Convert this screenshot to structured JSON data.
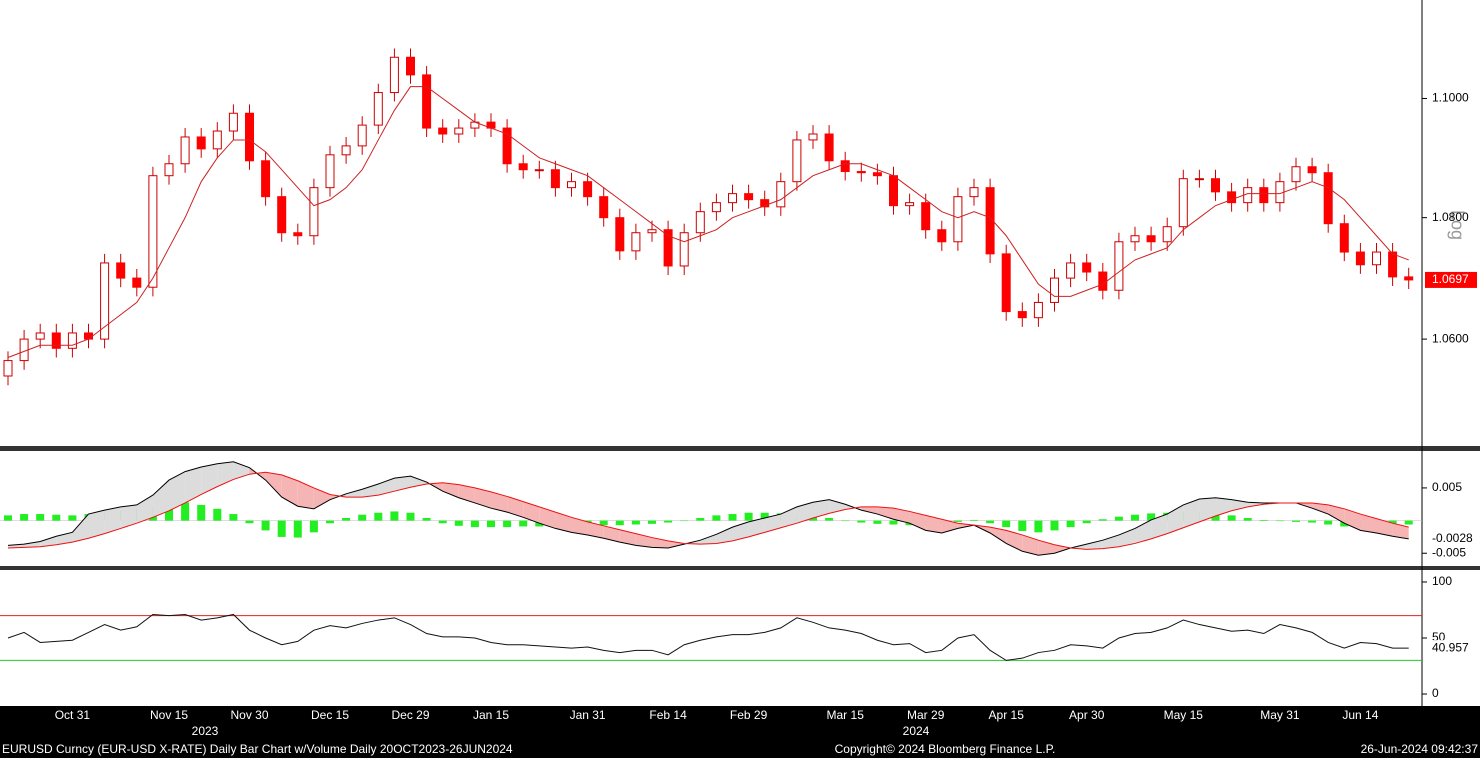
{
  "chart_data": [
    {
      "type": "candlestick",
      "log": true,
      "y_label": "Log",
      "up_color": "#ffffff",
      "down_color": "#ff0000",
      "wick_color": "#cc0000",
      "years": [
        "2023",
        "2024"
      ],
      "categories": [
        null,
        null,
        null,
        null,
        "Oct 31",
        null,
        null,
        null,
        null,
        null,
        "Nov 15",
        null,
        null,
        null,
        null,
        "Nov 30",
        null,
        null,
        null,
        null,
        "Dec 15",
        null,
        null,
        null,
        null,
        "Dec 29",
        null,
        null,
        null,
        null,
        "Jan 15",
        null,
        null,
        null,
        null,
        null,
        "Jan 31",
        null,
        null,
        null,
        null,
        "Feb 14",
        null,
        null,
        null,
        null,
        "Feb 29",
        null,
        null,
        null,
        null,
        null,
        "Mar 15",
        null,
        null,
        null,
        null,
        "Mar 29",
        null,
        null,
        null,
        null,
        "Apr 15",
        null,
        null,
        null,
        null,
        "Apr 30",
        null,
        null,
        null,
        null,
        null,
        "May 15",
        null,
        null,
        null,
        null,
        null,
        "May 31",
        null,
        null,
        null,
        null,
        "Jun 14",
        null,
        null,
        null
      ],
      "open": [
        1.054,
        1.0565,
        1.06,
        1.061,
        1.0585,
        1.061,
        1.06,
        1.0725,
        1.07,
        1.0685,
        1.087,
        1.089,
        1.0935,
        1.0915,
        1.0945,
        1.0975,
        1.0895,
        1.0835,
        1.0775,
        1.077,
        1.085,
        1.0905,
        1.092,
        1.0955,
        1.101,
        1.107,
        1.104,
        1.095,
        1.094,
        1.095,
        1.096,
        1.095,
        1.089,
        1.088,
        1.088,
        1.085,
        1.086,
        1.0835,
        1.08,
        1.0745,
        1.0775,
        1.078,
        1.072,
        1.0775,
        1.081,
        1.0825,
        1.084,
        1.083,
        1.0818,
        1.086,
        1.093,
        1.094,
        1.0895,
        1.0877,
        1.0875,
        1.087,
        1.082,
        1.0825,
        1.078,
        1.076,
        1.0835,
        1.085,
        1.074,
        1.0645,
        1.0635,
        1.066,
        1.07,
        1.0725,
        1.071,
        1.068,
        1.076,
        1.077,
        1.076,
        1.0785,
        1.0865,
        1.0865,
        1.0843,
        1.0825,
        1.085,
        1.0825,
        1.086,
        1.0885,
        1.0875,
        1.079,
        1.0743,
        1.0722,
        1.0743,
        1.0702
      ],
      "high": [
        1.058,
        1.0615,
        1.0625,
        1.0625,
        1.0625,
        1.0625,
        1.074,
        1.074,
        1.0715,
        1.0885,
        1.0905,
        1.095,
        1.095,
        1.096,
        1.099,
        1.099,
        1.091,
        1.085,
        1.079,
        1.0865,
        1.092,
        1.0935,
        1.097,
        1.1025,
        1.1085,
        1.1085,
        1.1055,
        1.0965,
        1.0965,
        1.0975,
        1.0975,
        1.0965,
        1.0905,
        1.0895,
        1.0895,
        1.0875,
        1.0875,
        1.085,
        1.0815,
        1.079,
        1.0795,
        1.0795,
        1.079,
        1.0825,
        1.084,
        1.0855,
        1.0855,
        1.0845,
        1.0875,
        1.0945,
        1.0955,
        1.0955,
        1.091,
        1.0892,
        1.089,
        1.0885,
        1.084,
        1.084,
        1.0795,
        1.085,
        1.0865,
        1.0865,
        1.0755,
        1.066,
        1.0675,
        1.0715,
        1.074,
        1.074,
        1.0725,
        1.0775,
        1.0785,
        1.0785,
        1.08,
        1.088,
        1.088,
        1.088,
        1.0858,
        1.0865,
        1.0865,
        1.0875,
        1.09,
        1.09,
        1.089,
        1.0805,
        1.0758,
        1.0758,
        1.0758,
        1.0717
      ],
      "low": [
        1.0525,
        1.055,
        1.0585,
        1.057,
        1.057,
        1.0585,
        1.0585,
        1.0685,
        1.067,
        1.067,
        1.0855,
        1.0875,
        1.09,
        1.09,
        1.093,
        1.088,
        1.082,
        1.076,
        1.0755,
        1.0755,
        1.0835,
        1.089,
        1.0905,
        1.094,
        1.0995,
        1.1025,
        1.0935,
        1.0925,
        1.0925,
        1.0935,
        1.0935,
        1.0875,
        1.0865,
        1.0865,
        1.0835,
        1.0835,
        1.082,
        1.0785,
        1.073,
        1.073,
        1.076,
        1.0705,
        1.0705,
        1.076,
        1.0795,
        1.081,
        1.0815,
        1.0803,
        1.0803,
        1.0845,
        1.0915,
        1.088,
        1.0862,
        1.086,
        1.0855,
        1.0805,
        1.0805,
        1.0765,
        1.0745,
        1.0745,
        1.082,
        1.0725,
        1.063,
        1.062,
        1.062,
        1.0645,
        1.0685,
        1.0695,
        1.0665,
        1.0665,
        1.0745,
        1.0745,
        1.0745,
        1.077,
        1.085,
        1.0828,
        1.081,
        1.081,
        1.081,
        1.081,
        1.0845,
        1.086,
        1.0775,
        1.0728,
        1.0707,
        1.0707,
        1.0687,
        1.0682
      ],
      "close": [
        1.0565,
        1.06,
        1.061,
        1.0585,
        1.061,
        1.06,
        1.0725,
        1.07,
        1.0685,
        1.087,
        1.089,
        1.0935,
        1.0915,
        1.0945,
        1.0975,
        1.0895,
        1.0835,
        1.0775,
        1.077,
        1.085,
        1.0905,
        1.092,
        1.0955,
        1.101,
        1.107,
        1.104,
        1.095,
        1.094,
        1.095,
        1.096,
        1.095,
        1.089,
        1.088,
        1.088,
        1.085,
        1.086,
        1.0835,
        1.08,
        1.0745,
        1.0775,
        1.078,
        1.072,
        1.0775,
        1.081,
        1.0825,
        1.084,
        1.083,
        1.0818,
        1.086,
        1.093,
        1.094,
        1.0895,
        1.0877,
        1.0875,
        1.087,
        1.082,
        1.0825,
        1.078,
        1.076,
        1.0835,
        1.085,
        1.074,
        1.0645,
        1.0635,
        1.066,
        1.07,
        1.0725,
        1.071,
        1.068,
        1.076,
        1.077,
        1.076,
        1.0785,
        1.0865,
        1.0865,
        1.0843,
        1.0825,
        1.085,
        1.0825,
        1.086,
        1.0885,
        1.0875,
        1.079,
        1.0743,
        1.0722,
        1.0743,
        1.0702,
        1.0697
      ],
      "ma": {
        "color": "#cc2222",
        "values": [
          1.057,
          1.058,
          1.059,
          1.059,
          1.059,
          1.06,
          1.062,
          1.064,
          1.066,
          1.07,
          1.075,
          1.08,
          1.086,
          1.09,
          1.093,
          1.093,
          1.091,
          1.088,
          1.085,
          1.082,
          1.083,
          1.085,
          1.088,
          1.093,
          1.098,
          1.102,
          1.102,
          1.1,
          1.098,
          1.096,
          1.095,
          1.094,
          1.092,
          1.09,
          1.089,
          1.088,
          1.087,
          1.085,
          1.083,
          1.081,
          1.079,
          1.077,
          1.076,
          1.077,
          1.078,
          1.08,
          1.081,
          1.082,
          1.083,
          1.085,
          1.087,
          1.088,
          1.089,
          1.089,
          1.088,
          1.087,
          1.085,
          1.083,
          1.081,
          1.08,
          1.081,
          1.08,
          1.077,
          1.073,
          1.069,
          1.067,
          1.067,
          1.068,
          1.069,
          1.071,
          1.073,
          1.074,
          1.075,
          1.078,
          1.08,
          1.082,
          1.083,
          1.084,
          1.084,
          1.084,
          1.085,
          1.086,
          1.085,
          1.083,
          1.08,
          1.077,
          1.074,
          1.073
        ]
      },
      "ylim": [
        1.0427,
        1.1168
      ],
      "yticks": [
        {
          "value": 1.06,
          "label": "1.0600"
        },
        {
          "value": 1.08,
          "label": "1.0800"
        },
        {
          "value": 1.1,
          "label": "1.1000"
        }
      ]
    },
    {
      "type": "macd",
      "series": [
        {
          "color": "#000000",
          "values": [
            -0.0038,
            -0.0036,
            -0.0032,
            -0.0024,
            -0.0018,
            0.001,
            0.0016,
            0.0021,
            0.0024,
            0.0039,
            0.0062,
            0.0075,
            0.0082,
            0.0087,
            0.009,
            0.0081,
            0.0062,
            0.0036,
            0.0022,
            0.0018,
            0.0032,
            0.0041,
            0.0048,
            0.0056,
            0.0065,
            0.0068,
            0.0059,
            0.0045,
            0.0035,
            0.0027,
            0.0019,
            0.0013,
            0.0005,
            -0.0004,
            -0.0012,
            -0.0018,
            -0.0022,
            -0.0027,
            -0.0033,
            -0.0038,
            -0.0041,
            -0.0042,
            -0.0036,
            -0.003,
            -0.0021,
            -0.001,
            -0.0002,
            0.0004,
            0.001,
            0.0021,
            0.0028,
            0.0032,
            0.0025,
            0.0016,
            0.001,
            0.0002,
            -0.0004,
            -0.0015,
            -0.0019,
            -0.0012,
            -0.0007,
            -0.0019,
            -0.0035,
            -0.0047,
            -0.0053,
            -0.005,
            -0.0042,
            -0.0036,
            -0.003,
            -0.0022,
            -0.0012,
            0.0001,
            0.001,
            0.0024,
            0.0033,
            0.0035,
            0.0032,
            0.0028,
            0.0027,
            0.0027,
            0.0027,
            0.0019,
            0.001,
            -0.0004,
            -0.0015,
            -0.0019,
            -0.0024,
            -0.0028
          ]
        },
        {
          "color": "#ee1111",
          "values": [
            -0.0042,
            -0.0041,
            -0.004,
            -0.0037,
            -0.0033,
            -0.0027,
            -0.002,
            -0.0012,
            -0.0004,
            0.0005,
            0.0015,
            0.0027,
            0.004,
            0.0052,
            0.0063,
            0.0071,
            0.0074,
            0.007,
            0.0061,
            0.005,
            0.004,
            0.0036,
            0.0036,
            0.0039,
            0.0045,
            0.0051,
            0.0056,
            0.0058,
            0.0055,
            0.005,
            0.0044,
            0.0037,
            0.0029,
            0.0021,
            0.0013,
            0.0005,
            -0.0002,
            -0.0008,
            -0.0014,
            -0.002,
            -0.0026,
            -0.0031,
            -0.0035,
            -0.0036,
            -0.0035,
            -0.0031,
            -0.0025,
            -0.0018,
            -0.0011,
            -0.0004,
            0.0004,
            0.0011,
            0.0017,
            0.0021,
            0.0021,
            0.0019,
            0.0014,
            0.0008,
            0.0002,
            -0.0004,
            -0.0007,
            -0.001,
            -0.0015,
            -0.0022,
            -0.003,
            -0.0037,
            -0.0042,
            -0.0044,
            -0.0043,
            -0.004,
            -0.0035,
            -0.0028,
            -0.002,
            -0.0011,
            -0.0002,
            0.0007,
            0.0015,
            0.0021,
            0.0025,
            0.0027,
            0.0027,
            0.0027,
            0.0024,
            0.0018,
            0.001,
            0.0003,
            -0.0004,
            -0.001
          ]
        }
      ],
      "hist": {
        "color": "#22ee22",
        "values": [
          0.0008,
          0.001,
          0.001,
          0.0009,
          0.0008,
          0.001,
          0.0014,
          0.0016,
          0.0018,
          0.0022,
          0.0026,
          0.0028,
          0.0024,
          0.0018,
          0.001,
          -0.0004,
          -0.0015,
          -0.0025,
          -0.0026,
          -0.0018,
          -0.0004,
          0.0004,
          0.0009,
          0.0012,
          0.0014,
          0.0012,
          0.0004,
          -0.0004,
          -0.0008,
          -0.001,
          -0.001,
          -0.001,
          -0.0009,
          -0.0009,
          -0.0009,
          -0.0008,
          -0.0007,
          -0.0007,
          -0.0007,
          -0.0006,
          -0.0005,
          -0.0003,
          0,
          0.0004,
          0.0008,
          0.001,
          0.0012,
          0.0012,
          0.0011,
          0.001,
          0.0008,
          0.0004,
          0,
          -0.0003,
          -0.0005,
          -0.0006,
          -0.0007,
          -0.0008,
          -0.0005,
          -0.0002,
          0.0001,
          -0.0004,
          -0.001,
          -0.0016,
          -0.0018,
          -0.0015,
          -0.001,
          -0.0004,
          0.0002,
          0.0006,
          0.0009,
          0.0011,
          0.0012,
          0.0014,
          0.0014,
          0.0012,
          0.0008,
          0.0004,
          0.0001,
          0,
          -0.0002,
          -0.0003,
          -0.0006,
          -0.0009,
          -0.0011,
          -0.001,
          -0.0008,
          -0.0006
        ]
      },
      "ylim": [
        -0.0068,
        0.0105
      ],
      "yticks": [
        -0.005,
        0.005
      ]
    },
    {
      "type": "line",
      "series": [
        {
          "color": "#111111",
          "values": [
            50,
            55,
            46,
            47,
            48,
            55,
            62,
            57,
            60,
            71,
            70,
            71,
            66,
            68,
            71,
            57,
            50,
            44,
            47,
            57,
            61,
            59,
            63,
            66,
            68,
            62,
            54,
            51,
            51,
            50,
            46,
            44,
            44,
            43,
            42,
            41,
            42,
            39,
            37,
            39,
            39,
            35,
            44,
            48,
            51,
            53,
            53,
            55,
            59,
            68,
            64,
            59,
            57,
            54,
            48,
            44,
            45,
            37,
            39,
            50,
            53,
            39,
            30,
            32,
            37,
            39,
            44,
            43,
            41,
            50,
            54,
            55,
            59,
            66,
            62,
            59,
            56,
            57,
            54,
            62,
            59,
            55,
            46,
            41,
            46,
            45,
            41,
            40.957
          ]
        }
      ],
      "levels": [
        {
          "value": 70,
          "color": "#dd2222"
        },
        {
          "value": 30,
          "color": "#22cc22"
        }
      ],
      "ylim": [
        -9.8,
        108.9
      ],
      "yticks": [
        0,
        50,
        100
      ]
    }
  ],
  "footer": {
    "left": "EURUSD Curncy (EUR-USD X-RATE) Daily Bar Chart w/Volume  Daily 20OCT2023-26JUN2024",
    "center": "Copyright© 2024 Bloomberg Finance L.P.",
    "right": "26-Jun-2024 09:42:37"
  }
}
